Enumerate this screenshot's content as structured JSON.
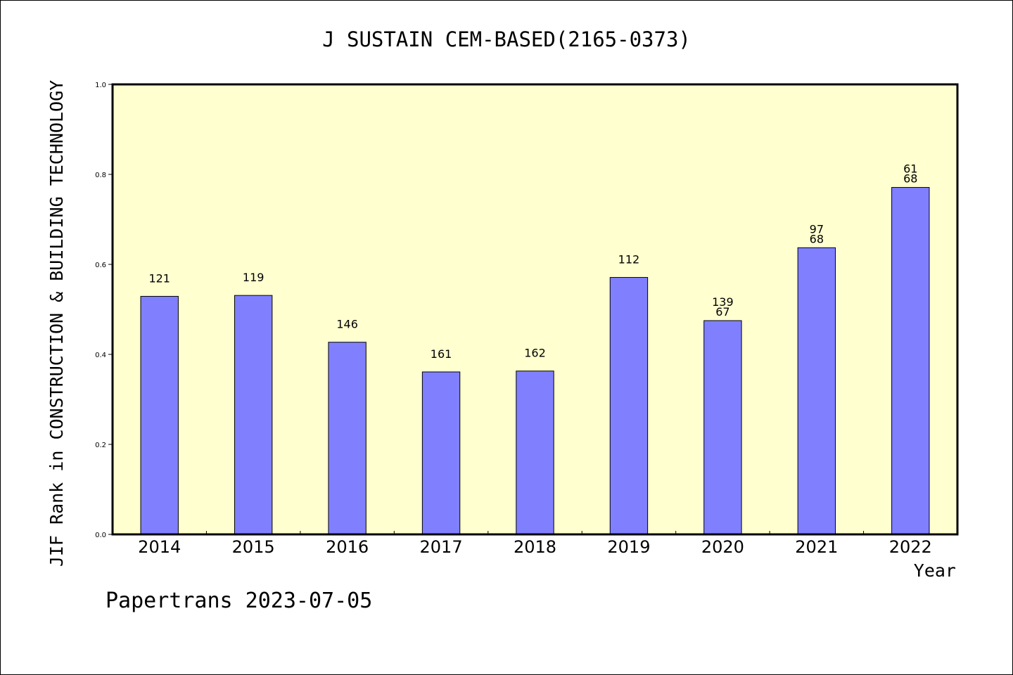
{
  "chart_data": {
    "type": "bar",
    "title": "J SUSTAIN CEM-BASED(2165-0373)",
    "xlabel": "Year",
    "ylabel": "JIF Rank in CONSTRUCTION & BUILDING TECHNOLOGY",
    "ylim": [
      0.0,
      1.0
    ],
    "yticks": [
      "0.0",
      "0.2",
      "0.4",
      "0.6",
      "0.8",
      "1.0"
    ],
    "grid": false,
    "plot_background": "#ffffd0",
    "bar_color": "#8080ff",
    "categories": [
      "2014",
      "2015",
      "2016",
      "2017",
      "2018",
      "2019",
      "2020",
      "2021",
      "2022"
    ],
    "values": [
      0.529,
      0.531,
      0.427,
      0.361,
      0.363,
      0.571,
      0.475,
      0.637,
      0.771
    ],
    "labels": [
      [
        "121"
      ],
      [
        "119"
      ],
      [
        "146"
      ],
      [
        "161"
      ],
      [
        "162"
      ],
      [
        "112"
      ],
      [
        "139",
        "67"
      ],
      [
        "97",
        "68"
      ],
      [
        "61",
        "68"
      ]
    ]
  },
  "footer": "Papertrans 2023-07-05"
}
